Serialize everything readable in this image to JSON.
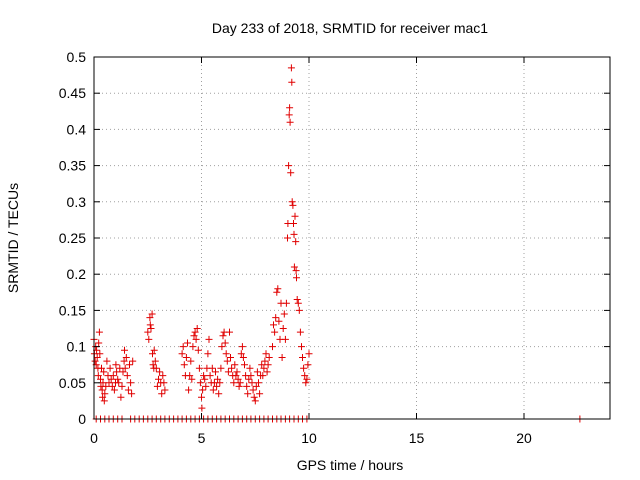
{
  "chart_data": {
    "type": "scatter",
    "title": "Day 233 of 2018, SRMTID for receiver mac1",
    "xlabel": "GPS time / hours",
    "ylabel": "SRMTID / TECUs",
    "xlim": [
      0,
      24
    ],
    "ylim": [
      0,
      0.5
    ],
    "xticks": [
      0,
      5,
      10,
      15,
      20
    ],
    "xtick_labels": [
      "0",
      "5",
      "10",
      "15",
      "20"
    ],
    "yticks": [
      0,
      0.05,
      0.1,
      0.15,
      0.2,
      0.25,
      0.3,
      0.35,
      0.4,
      0.45,
      0.5
    ],
    "ytick_labels": [
      "0",
      "0.05",
      "0.1",
      "0.15",
      "0.2",
      "0.25",
      "0.3",
      "0.35",
      "0.4",
      "0.45",
      "0.5"
    ],
    "grid": true,
    "marker": "+",
    "color": "#e00000",
    "series": [
      {
        "points": [
          [
            0.0,
            0.11
          ],
          [
            0.02,
            0.09
          ],
          [
            0.05,
            0.08
          ],
          [
            0.08,
            0.1
          ],
          [
            0.1,
            0.075
          ],
          [
            0.12,
            0.095
          ],
          [
            0.15,
            0.085
          ],
          [
            0.18,
            0.07
          ],
          [
            0.2,
            0.06
          ],
          [
            0.22,
            0.105
          ],
          [
            0.25,
            0.12
          ],
          [
            0.27,
            0.09
          ],
          [
            0.3,
            0.055
          ],
          [
            0.32,
            0.045
          ],
          [
            0.35,
            0.07
          ],
          [
            0.38,
            0.04
          ],
          [
            0.4,
            0.03
          ],
          [
            0.42,
            0.05
          ],
          [
            0.45,
            0.065
          ],
          [
            0.48,
            0.025
          ],
          [
            0.5,
            0.035
          ],
          [
            0.55,
            0.045
          ],
          [
            0.6,
            0.08
          ],
          [
            0.65,
            0.06
          ],
          [
            0.7,
            0.05
          ],
          [
            0.75,
            0.07
          ],
          [
            0.8,
            0.055
          ],
          [
            0.85,
            0.045
          ],
          [
            0.9,
            0.06
          ],
          [
            0.95,
            0.04
          ],
          [
            1.0,
            0.05
          ],
          [
            1.02,
            0.075
          ],
          [
            1.05,
            0.065
          ],
          [
            1.1,
            0.055
          ],
          [
            1.15,
            0.05
          ],
          [
            1.2,
            0.07
          ],
          [
            1.25,
            0.03
          ],
          [
            1.3,
            0.045
          ],
          [
            1.35,
            0.065
          ],
          [
            1.4,
            0.08
          ],
          [
            1.42,
            0.095
          ],
          [
            1.45,
            0.07
          ],
          [
            1.5,
            0.085
          ],
          [
            1.55,
            0.06
          ],
          [
            1.6,
            0.04
          ],
          [
            1.65,
            0.075
          ],
          [
            1.7,
            0.05
          ],
          [
            1.75,
            0.035
          ],
          [
            1.8,
            0.08
          ],
          [
            2.5,
            0.12
          ],
          [
            2.55,
            0.11
          ],
          [
            2.6,
            0.14
          ],
          [
            2.62,
            0.13
          ],
          [
            2.65,
            0.125
          ],
          [
            2.7,
            0.145
          ],
          [
            2.72,
            0.09
          ],
          [
            2.75,
            0.075
          ],
          [
            2.78,
            0.07
          ],
          [
            2.8,
            0.095
          ],
          [
            2.85,
            0.08
          ],
          [
            2.9,
            0.07
          ],
          [
            2.95,
            0.045
          ],
          [
            3.0,
            0.055
          ],
          [
            3.05,
            0.065
          ],
          [
            3.1,
            0.05
          ],
          [
            3.15,
            0.035
          ],
          [
            3.2,
            0.06
          ],
          [
            3.25,
            0.05
          ],
          [
            3.3,
            0.04
          ],
          [
            4.1,
            0.09
          ],
          [
            4.15,
            0.1
          ],
          [
            4.2,
            0.075
          ],
          [
            4.25,
            0.06
          ],
          [
            4.3,
            0.085
          ],
          [
            4.35,
            0.105
          ],
          [
            4.4,
            0.04
          ],
          [
            4.45,
            0.06
          ],
          [
            4.5,
            0.08
          ],
          [
            4.55,
            0.055
          ],
          [
            4.6,
            0.1
          ],
          [
            4.65,
            0.115
          ],
          [
            4.7,
            0.12
          ],
          [
            4.75,
            0.11
          ],
          [
            4.8,
            0.125
          ],
          [
            4.85,
            0.095
          ],
          [
            4.9,
            0.07
          ],
          [
            4.95,
            0.05
          ],
          [
            5.0,
            0.03
          ],
          [
            5.02,
            0.015
          ],
          [
            5.05,
            0.04
          ],
          [
            5.1,
            0.06
          ],
          [
            5.15,
            0.055
          ],
          [
            5.2,
            0.045
          ],
          [
            5.25,
            0.07
          ],
          [
            5.3,
            0.09
          ],
          [
            5.35,
            0.11
          ],
          [
            5.4,
            0.06
          ],
          [
            5.45,
            0.05
          ],
          [
            5.5,
            0.07
          ],
          [
            5.55,
            0.04
          ],
          [
            5.6,
            0.05
          ],
          [
            5.65,
            0.065
          ],
          [
            5.7,
            0.045
          ],
          [
            5.75,
            0.055
          ],
          [
            5.8,
            0.035
          ],
          [
            5.85,
            0.05
          ],
          [
            5.9,
            0.07
          ],
          [
            5.95,
            0.1
          ],
          [
            6.0,
            0.115
          ],
          [
            6.05,
            0.12
          ],
          [
            6.1,
            0.105
          ],
          [
            6.15,
            0.09
          ],
          [
            6.2,
            0.08
          ],
          [
            6.25,
            0.065
          ],
          [
            6.3,
            0.12
          ],
          [
            6.35,
            0.085
          ],
          [
            6.4,
            0.07
          ],
          [
            6.45,
            0.06
          ],
          [
            6.5,
            0.05
          ],
          [
            6.55,
            0.075
          ],
          [
            6.6,
            0.06
          ],
          [
            6.65,
            0.065
          ],
          [
            6.7,
            0.055
          ],
          [
            6.75,
            0.045
          ],
          [
            6.8,
            0.05
          ],
          [
            6.85,
            0.09
          ],
          [
            6.9,
            0.1
          ],
          [
            6.95,
            0.085
          ],
          [
            7.0,
            0.075
          ],
          [
            7.05,
            0.06
          ],
          [
            7.1,
            0.045
          ],
          [
            7.15,
            0.035
          ],
          [
            7.2,
            0.055
          ],
          [
            7.25,
            0.07
          ],
          [
            7.3,
            0.06
          ],
          [
            7.35,
            0.05
          ],
          [
            7.4,
            0.04
          ],
          [
            7.45,
            0.03
          ],
          [
            7.5,
            0.025
          ],
          [
            7.55,
            0.045
          ],
          [
            7.6,
            0.065
          ],
          [
            7.65,
            0.05
          ],
          [
            7.7,
            0.035
          ],
          [
            7.75,
            0.06
          ],
          [
            7.8,
            0.075
          ],
          [
            7.85,
            0.06
          ],
          [
            7.9,
            0.07
          ],
          [
            7.95,
            0.08
          ],
          [
            8.0,
            0.09
          ],
          [
            8.05,
            0.065
          ],
          [
            8.1,
            0.075
          ],
          [
            8.15,
            0.085
          ],
          [
            8.3,
            0.1
          ],
          [
            8.35,
            0.13
          ],
          [
            8.4,
            0.12
          ],
          [
            8.45,
            0.14
          ],
          [
            8.5,
            0.175
          ],
          [
            8.55,
            0.18
          ],
          [
            8.6,
            0.135
          ],
          [
            8.65,
            0.11
          ],
          [
            8.7,
            0.16
          ],
          [
            8.75,
            0.085
          ],
          [
            8.8,
            0.125
          ],
          [
            8.85,
            0.145
          ],
          [
            8.9,
            0.11
          ],
          [
            8.95,
            0.16
          ],
          [
            9.0,
            0.25
          ],
          [
            9.02,
            0.27
          ],
          [
            9.05,
            0.35
          ],
          [
            9.08,
            0.42
          ],
          [
            9.1,
            0.43
          ],
          [
            9.12,
            0.41
          ],
          [
            9.15,
            0.34
          ],
          [
            9.18,
            0.485
          ],
          [
            9.2,
            0.465
          ],
          [
            9.22,
            0.3
          ],
          [
            9.25,
            0.295
          ],
          [
            9.28,
            0.27
          ],
          [
            9.3,
            0.255
          ],
          [
            9.32,
            0.21
          ],
          [
            9.35,
            0.28
          ],
          [
            9.38,
            0.245
          ],
          [
            9.4,
            0.205
          ],
          [
            9.42,
            0.195
          ],
          [
            9.45,
            0.165
          ],
          [
            9.5,
            0.16
          ],
          [
            9.55,
            0.15
          ],
          [
            9.6,
            0.12
          ],
          [
            9.65,
            0.1
          ],
          [
            9.7,
            0.085
          ],
          [
            9.75,
            0.07
          ],
          [
            9.8,
            0.06
          ],
          [
            9.85,
            0.05
          ],
          [
            9.9,
            0.055
          ],
          [
            9.95,
            0.075
          ],
          [
            10.0,
            0.09
          ],
          [
            0.1,
            0.0
          ],
          [
            0.3,
            0.0
          ],
          [
            0.5,
            0.0
          ],
          [
            0.7,
            0.0
          ],
          [
            0.9,
            0.0
          ],
          [
            1.1,
            0.0
          ],
          [
            1.3,
            0.0
          ],
          [
            1.7,
            0.0
          ],
          [
            1.9,
            0.0
          ],
          [
            2.1,
            0.0
          ],
          [
            2.3,
            0.0
          ],
          [
            2.5,
            0.0
          ],
          [
            2.7,
            0.0
          ],
          [
            2.9,
            0.0
          ],
          [
            3.1,
            0.0
          ],
          [
            3.3,
            0.0
          ],
          [
            3.5,
            0.0
          ],
          [
            3.7,
            0.0
          ],
          [
            3.9,
            0.0
          ],
          [
            4.1,
            0.0
          ],
          [
            4.3,
            0.0
          ],
          [
            4.5,
            0.0
          ],
          [
            4.7,
            0.0
          ],
          [
            4.9,
            0.0
          ],
          [
            5.1,
            0.0
          ],
          [
            5.3,
            0.0
          ],
          [
            5.5,
            0.0
          ],
          [
            5.7,
            0.0
          ],
          [
            5.9,
            0.0
          ],
          [
            6.1,
            0.0
          ],
          [
            6.3,
            0.0
          ],
          [
            6.5,
            0.0
          ],
          [
            6.7,
            0.0
          ],
          [
            6.9,
            0.0
          ],
          [
            7.1,
            0.0
          ],
          [
            7.3,
            0.0
          ],
          [
            7.5,
            0.0
          ],
          [
            7.7,
            0.0
          ],
          [
            7.9,
            0.0
          ],
          [
            8.1,
            0.0
          ],
          [
            8.3,
            0.0
          ],
          [
            8.5,
            0.0
          ],
          [
            8.7,
            0.0
          ],
          [
            8.9,
            0.0
          ],
          [
            9.1,
            0.0
          ],
          [
            9.3,
            0.0
          ],
          [
            9.5,
            0.0
          ],
          [
            9.7,
            0.0
          ],
          [
            9.9,
            0.0
          ],
          [
            22.6,
            0.0
          ]
        ]
      }
    ]
  }
}
